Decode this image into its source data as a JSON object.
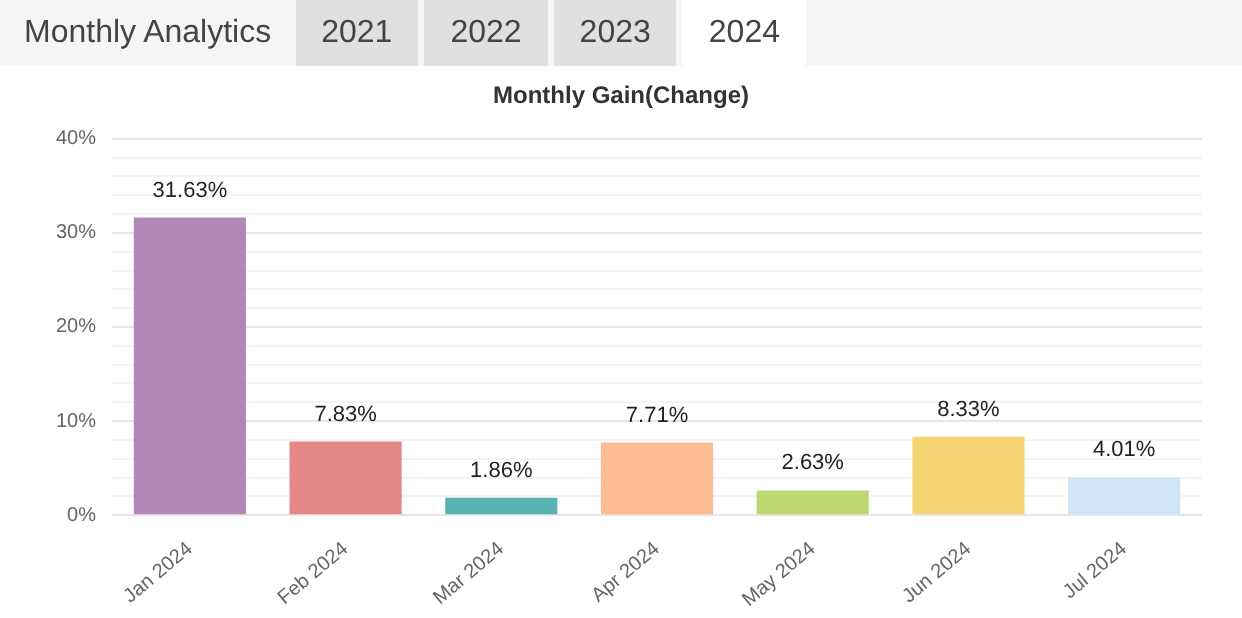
{
  "chart_data": {
    "type": "bar",
    "title": "Monthly Gain(Change)",
    "annotations": [
      "Monthly Analytics",
      "2021",
      "2022",
      "2023",
      "2024"
    ],
    "categories": [
      "Jan 2024",
      "Feb 2024",
      "Mar 2024",
      "Apr 2024",
      "May 2024",
      "Jun 2024",
      "Jul 2024"
    ],
    "values": [
      31.63,
      7.83,
      1.86,
      7.71,
      2.63,
      8.33,
      4.01
    ],
    "colors": [
      "#b386b5",
      "#e38886",
      "#59b3b3",
      "#fdbd94",
      "#bcd86f",
      "#f5d472",
      "#d0e5f8"
    ],
    "value_labels": [
      "31.63%",
      "7.83%",
      "1.86%",
      "7.71%",
      "2.63%",
      "8.33%",
      "4.01%"
    ],
    "ylim": [
      0,
      40
    ],
    "yticks": [
      {
        "value": 0,
        "label": "0%"
      },
      {
        "value": 2,
        "label": null
      },
      {
        "value": 4,
        "label": null
      },
      {
        "value": 6,
        "label": null
      },
      {
        "value": 8,
        "label": null
      },
      {
        "value": 10,
        "label": "10%"
      },
      {
        "value": 12,
        "label": null
      },
      {
        "value": 14,
        "label": null
      },
      {
        "value": 16,
        "label": null
      },
      {
        "value": 18,
        "label": null
      },
      {
        "value": 20,
        "label": "20%"
      },
      {
        "value": 22,
        "label": null
      },
      {
        "value": 24,
        "label": null
      },
      {
        "value": 26,
        "label": null
      },
      {
        "value": 28,
        "label": null
      },
      {
        "value": 30,
        "label": "30%"
      },
      {
        "value": 32,
        "label": null
      },
      {
        "value": 34,
        "label": null
      },
      {
        "value": 36,
        "label": null
      },
      {
        "value": 38,
        "label": null
      },
      {
        "value": 40,
        "label": "40%"
      }
    ],
    "grid": "y",
    "legend": false
  }
}
